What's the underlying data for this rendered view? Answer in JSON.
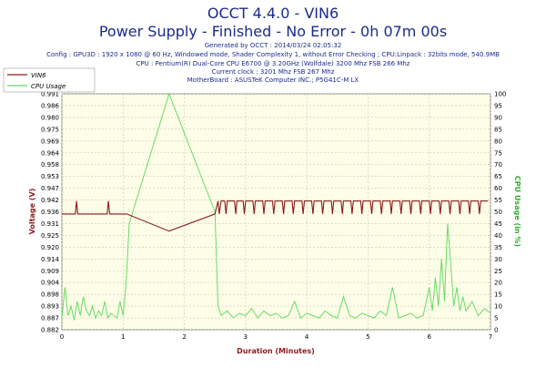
{
  "header": {
    "title": "OCCT 4.4.0 - VIN6",
    "subtitle": "Power Supply - Finished - No Error - 0h 07m 00s",
    "generated": "Generated by OCCT : 2014/03/24 02:05:32",
    "config": "Config : GPU3D : 1920 x 1080 @ 60 Hz, Windowed mode, Shader Complexity 1, without Error Checking ; CPU:Linpack : 32bits mode, 540.9MB",
    "cpu": "CPU : Pentium(R) Dual-Core CPU E6700 @ 3.20GHz (Wolfdale) 3200 Mhz FSB 266 Mhz",
    "clock": "Current clock : 3201 Mhz FSB 267 Mhz",
    "motherboard": "MotherBoard : ASUSTeK Computer INC.; P5G41C-M LX"
  },
  "colors": {
    "vin6": "#8b1a1a",
    "cpu": "#66dd66",
    "plot_bg": "#fefde8",
    "grid": "#c8c8a8",
    "title": "#1a2b8c"
  },
  "chart_data": {
    "type": "line",
    "xlabel": "Duration (Minutes)",
    "ylabel_left": "Voltage (V)",
    "ylabel_right": "CPU Usage (in %)",
    "xlim": [
      0,
      7
    ],
    "ylim_left": [
      0.882,
      0.992
    ],
    "ylim_right": [
      0,
      100
    ],
    "x_ticks": [
      "0",
      "1",
      "2",
      "3",
      "4",
      "5",
      "6",
      "7"
    ],
    "y_ticks_left": [
      "0.882",
      "0.887",
      "0.893",
      "0.898",
      "0.904",
      "0.909",
      "0.914",
      "0.920",
      "0.925",
      "0.931",
      "0.936",
      "0.942",
      "0.947",
      "0.953",
      "0.958",
      "0.964",
      "0.969",
      "0.975",
      "0.980",
      "0.986",
      "0.991"
    ],
    "y_ticks_right": [
      "0",
      "5",
      "10",
      "15",
      "20",
      "25",
      "30",
      "35",
      "40",
      "45",
      "50",
      "55",
      "60",
      "65",
      "70",
      "75",
      "80",
      "85",
      "90",
      "95",
      "100"
    ],
    "grid": true,
    "legend_position": "top-left",
    "series": [
      {
        "name": "VIN6",
        "axis": "left",
        "x": [
          0,
          0.22,
          0.24,
          0.26,
          0.74,
          0.76,
          0.78,
          1.06,
          1.75,
          2.5,
          2.55,
          2.57,
          2.6,
          2.66,
          2.68,
          2.7,
          2.82,
          2.84,
          2.86,
          2.96,
          2.98,
          3.0,
          3.12,
          3.14,
          3.16,
          3.28,
          3.3,
          3.32,
          3.44,
          3.46,
          3.48,
          3.6,
          3.62,
          3.64,
          3.76,
          3.78,
          3.8,
          3.92,
          3.94,
          3.96,
          4.08,
          4.1,
          4.12,
          4.24,
          4.26,
          4.28,
          4.4,
          4.42,
          4.44,
          4.56,
          4.58,
          4.6,
          4.72,
          4.74,
          4.76,
          4.88,
          4.9,
          4.92,
          5.04,
          5.06,
          5.08,
          5.2,
          5.22,
          5.24,
          5.36,
          5.38,
          5.4,
          5.52,
          5.54,
          5.56,
          5.68,
          5.7,
          5.72,
          5.84,
          5.86,
          5.88,
          6.0,
          6.02,
          6.04,
          6.16,
          6.18,
          6.2,
          6.32,
          6.34,
          6.36,
          6.48,
          6.5,
          6.52,
          6.64,
          6.66,
          6.68,
          6.8,
          6.82,
          6.84,
          6.96
        ],
        "y": [
          0.936,
          0.936,
          0.942,
          0.936,
          0.936,
          0.942,
          0.936,
          0.936,
          0.928,
          0.936,
          0.942,
          0.936,
          0.942,
          0.942,
          0.936,
          0.942,
          0.942,
          0.936,
          0.942,
          0.942,
          0.936,
          0.942,
          0.942,
          0.936,
          0.942,
          0.942,
          0.936,
          0.942,
          0.942,
          0.936,
          0.942,
          0.942,
          0.936,
          0.942,
          0.942,
          0.936,
          0.942,
          0.942,
          0.936,
          0.942,
          0.942,
          0.936,
          0.942,
          0.942,
          0.936,
          0.942,
          0.942,
          0.936,
          0.942,
          0.942,
          0.936,
          0.942,
          0.942,
          0.936,
          0.942,
          0.942,
          0.936,
          0.942,
          0.942,
          0.936,
          0.942,
          0.942,
          0.936,
          0.942,
          0.942,
          0.936,
          0.942,
          0.942,
          0.936,
          0.942,
          0.942,
          0.936,
          0.942,
          0.942,
          0.936,
          0.942,
          0.942,
          0.936,
          0.942,
          0.942,
          0.936,
          0.942,
          0.942,
          0.936,
          0.942,
          0.942,
          0.936,
          0.942,
          0.942,
          0.936,
          0.942,
          0.942,
          0.936,
          0.942,
          0.942
        ]
      },
      {
        "name": "CPU Usage",
        "axis": "right",
        "x": [
          0,
          0.05,
          0.1,
          0.15,
          0.2,
          0.25,
          0.3,
          0.35,
          0.4,
          0.45,
          0.5,
          0.55,
          0.6,
          0.65,
          0.7,
          0.75,
          0.8,
          0.85,
          0.9,
          0.95,
          1.0,
          1.05,
          1.1,
          1.75,
          2.5,
          2.55,
          2.6,
          2.7,
          2.8,
          2.9,
          3.0,
          3.1,
          3.2,
          3.3,
          3.4,
          3.5,
          3.6,
          3.7,
          3.8,
          3.9,
          4.0,
          4.1,
          4.2,
          4.3,
          4.4,
          4.5,
          4.6,
          4.7,
          4.8,
          4.9,
          5.0,
          5.1,
          5.2,
          5.3,
          5.4,
          5.5,
          5.6,
          5.7,
          5.8,
          5.9,
          6.0,
          6.05,
          6.1,
          6.15,
          6.2,
          6.25,
          6.3,
          6.35,
          6.4,
          6.45,
          6.5,
          6.55,
          6.6,
          6.7,
          6.8,
          6.9,
          7.0
        ],
        "y": [
          5,
          18,
          6,
          10,
          4,
          12,
          6,
          14,
          8,
          6,
          10,
          5,
          8,
          6,
          12,
          5,
          7,
          6,
          5,
          12,
          6,
          20,
          45,
          100,
          50,
          10,
          6,
          8,
          5,
          7,
          6,
          9,
          5,
          8,
          6,
          7,
          5,
          6,
          12,
          5,
          7,
          6,
          5,
          8,
          6,
          5,
          14,
          6,
          5,
          7,
          6,
          5,
          8,
          6,
          18,
          5,
          6,
          7,
          5,
          6,
          18,
          8,
          22,
          10,
          30,
          12,
          45,
          28,
          10,
          18,
          8,
          14,
          8,
          12,
          6,
          9,
          7
        ]
      }
    ]
  }
}
